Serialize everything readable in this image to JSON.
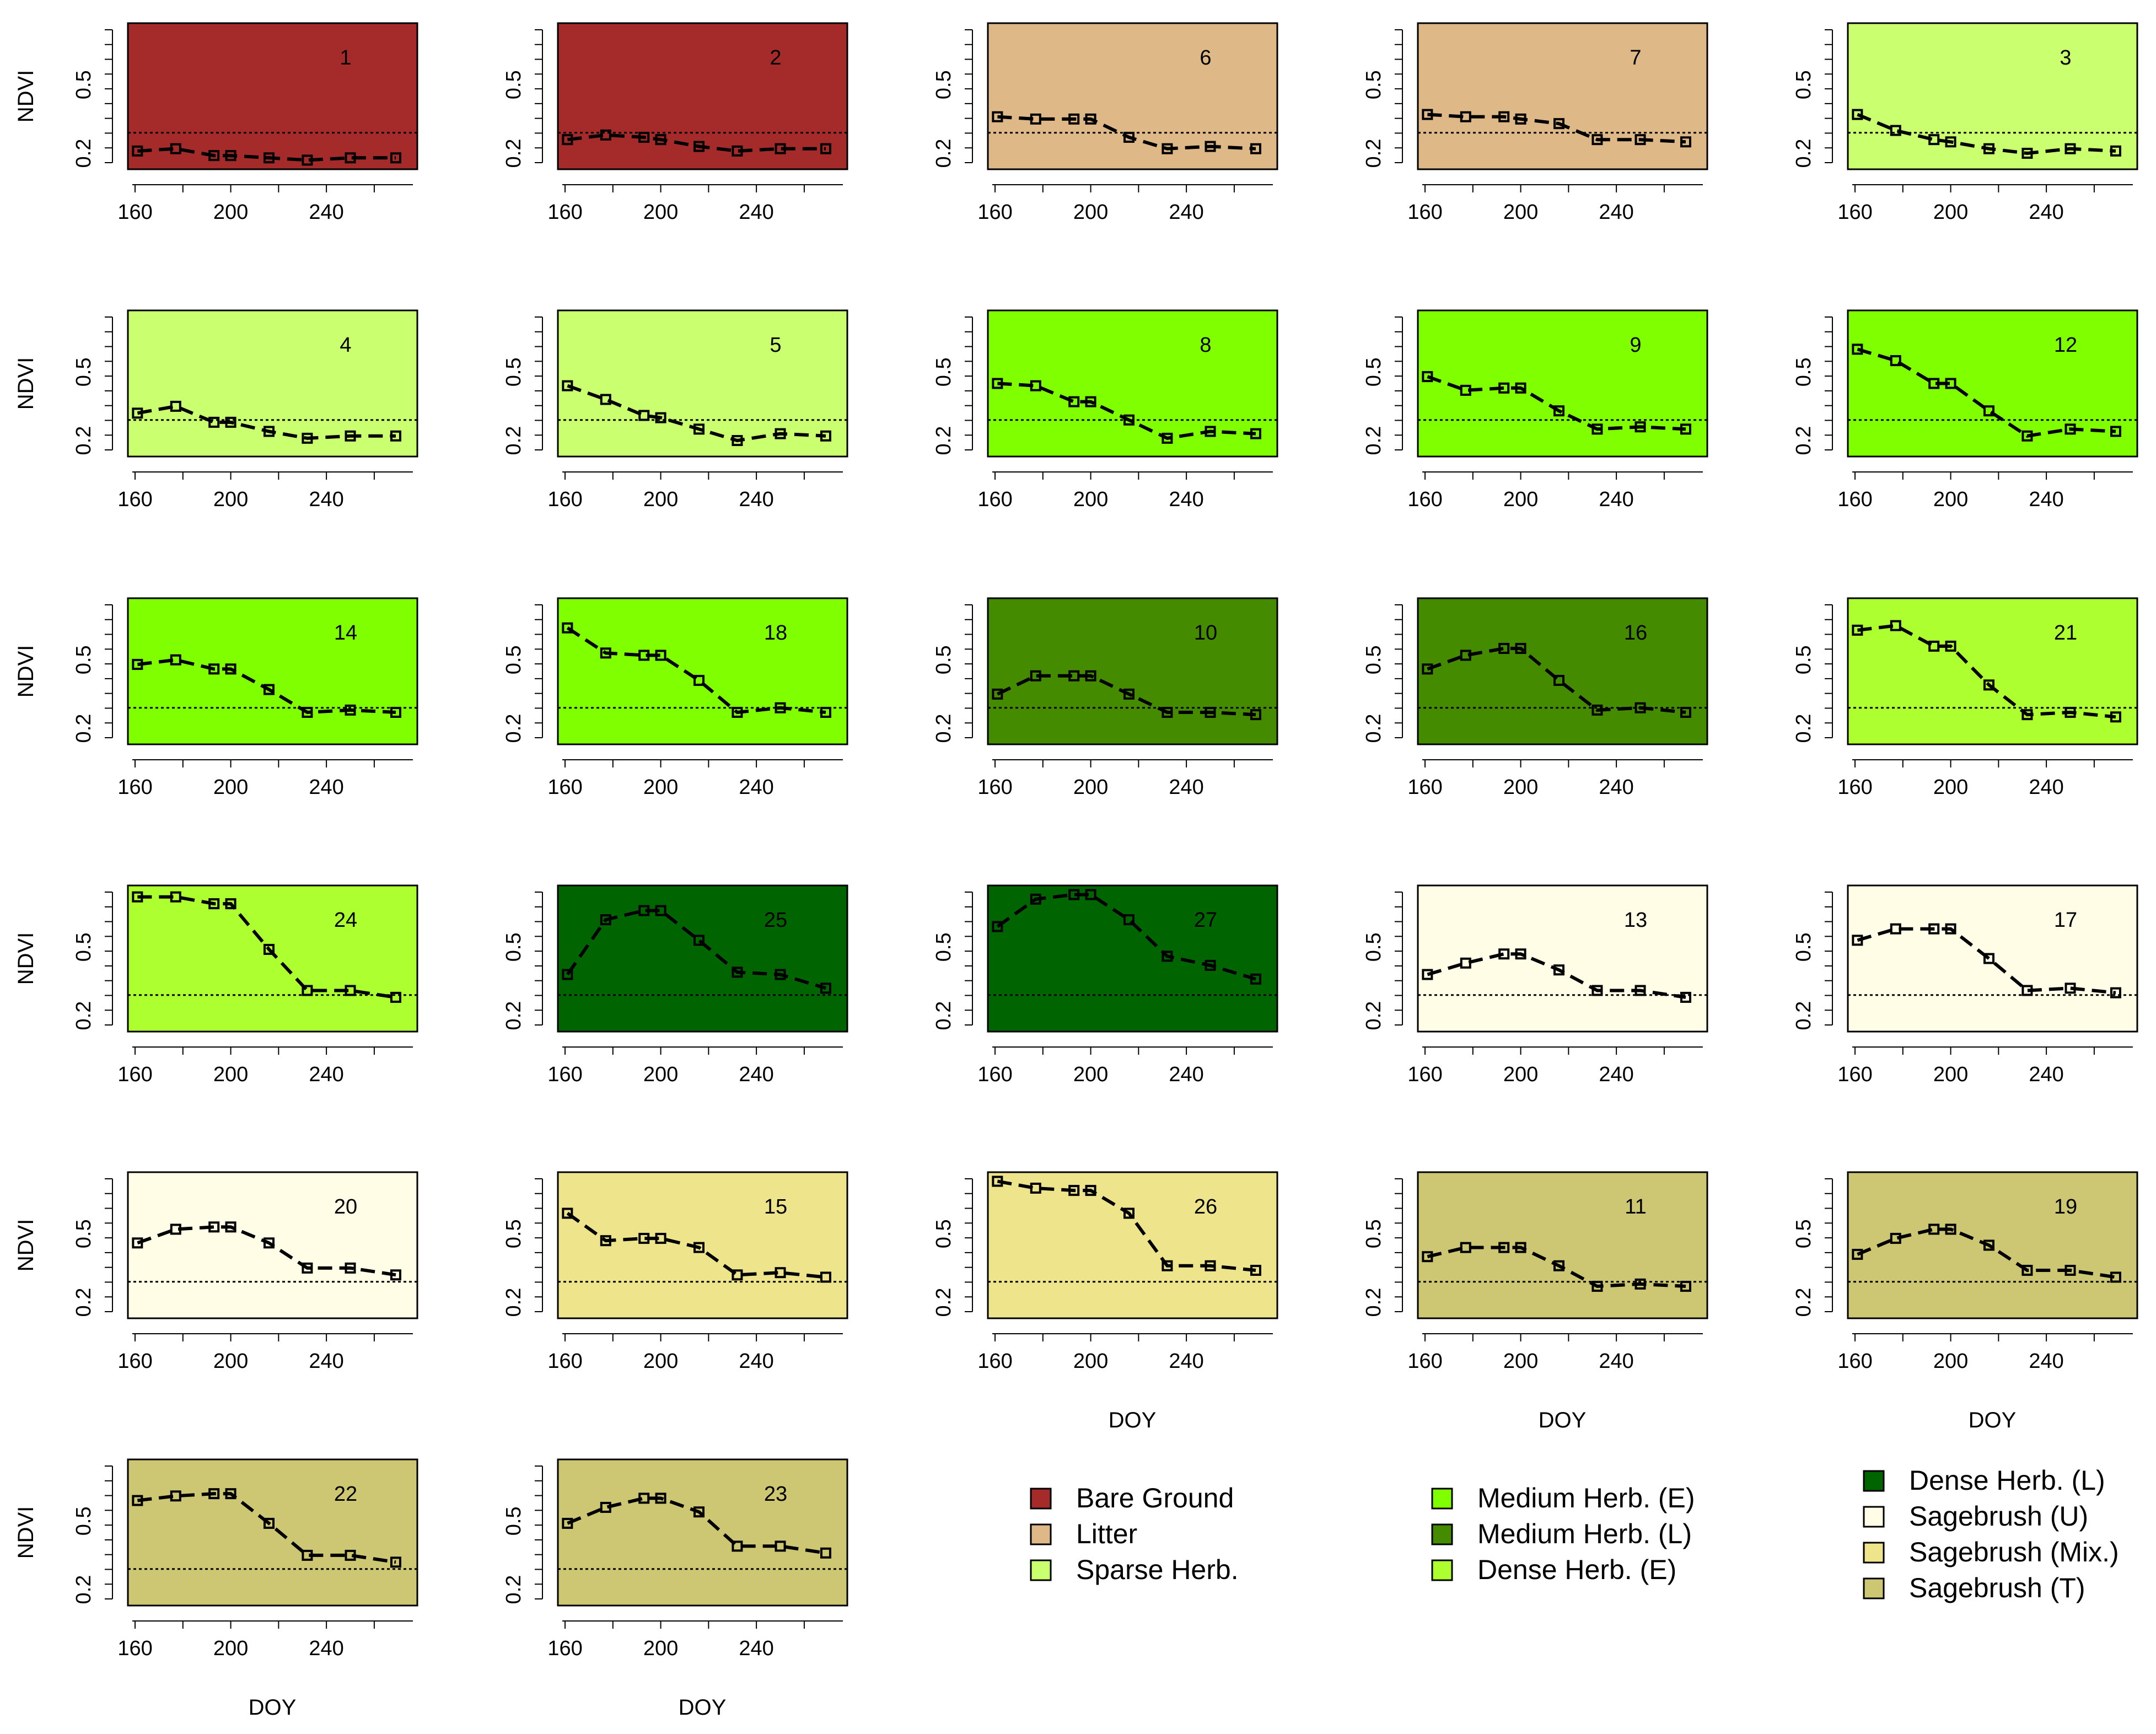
{
  "chart_data": {
    "type": "line",
    "doy": [
      161,
      177,
      193,
      200,
      216,
      232,
      250,
      269
    ],
    "xticks": [
      160,
      200,
      240
    ],
    "yticks": [
      "0.2",
      "0.5"
    ],
    "ylim": [
      0.13,
      0.77
    ],
    "xlim": [
      157,
      278
    ],
    "threshold": 0.29,
    "ylabel": "NDVI",
    "xlabel": "DOY",
    "colors": {
      "bare_ground": "#a52a2a",
      "litter": "#deb887",
      "sparse_herb": "#caff70",
      "medium_herb_e": "#7fff00",
      "medium_herb_l": "#458b00",
      "dense_herb_e": "#adff2f",
      "dense_herb_l": "#006400",
      "sagebrush_u": "#fffde6",
      "sagebrush_mix": "#eee48c",
      "sagebrush_t": "#cdc673"
    },
    "panels": [
      {
        "label": "1",
        "cls": "bare_ground",
        "values": [
          0.21,
          0.22,
          0.19,
          0.19,
          0.18,
          0.17,
          0.18,
          0.18
        ]
      },
      {
        "label": "2",
        "cls": "bare_ground",
        "values": [
          0.26,
          0.28,
          0.27,
          0.26,
          0.23,
          0.21,
          0.22,
          0.22
        ]
      },
      {
        "label": "6",
        "cls": "litter",
        "values": [
          0.36,
          0.35,
          0.35,
          0.35,
          0.27,
          0.22,
          0.23,
          0.22
        ]
      },
      {
        "label": "7",
        "cls": "litter",
        "values": [
          0.37,
          0.36,
          0.36,
          0.35,
          0.33,
          0.26,
          0.26,
          0.25
        ]
      },
      {
        "label": "3",
        "cls": "sparse_herb",
        "values": [
          0.37,
          0.3,
          0.26,
          0.25,
          0.22,
          0.2,
          0.22,
          0.21
        ]
      },
      {
        "label": "4",
        "cls": "sparse_herb",
        "values": [
          0.32,
          0.35,
          0.28,
          0.28,
          0.24,
          0.21,
          0.22,
          0.22
        ]
      },
      {
        "label": "5",
        "cls": "sparse_herb",
        "values": [
          0.44,
          0.38,
          0.31,
          0.3,
          0.25,
          0.2,
          0.23,
          0.22
        ]
      },
      {
        "label": "8",
        "cls": "medium_herb_e",
        "values": [
          0.45,
          0.44,
          0.37,
          0.37,
          0.29,
          0.21,
          0.24,
          0.23
        ]
      },
      {
        "label": "9",
        "cls": "medium_herb_e",
        "values": [
          0.48,
          0.42,
          0.43,
          0.43,
          0.33,
          0.25,
          0.26,
          0.25
        ]
      },
      {
        "label": "12",
        "cls": "medium_herb_e",
        "values": [
          0.6,
          0.55,
          0.45,
          0.45,
          0.33,
          0.22,
          0.25,
          0.24
        ]
      },
      {
        "label": "14",
        "cls": "medium_herb_e",
        "values": [
          0.48,
          0.5,
          0.46,
          0.46,
          0.37,
          0.27,
          0.28,
          0.27
        ]
      },
      {
        "label": "18",
        "cls": "medium_herb_e",
        "values": [
          0.64,
          0.53,
          0.52,
          0.52,
          0.41,
          0.27,
          0.29,
          0.27
        ]
      },
      {
        "label": "10",
        "cls": "medium_herb_l",
        "values": [
          0.35,
          0.43,
          0.43,
          0.43,
          0.35,
          0.27,
          0.27,
          0.26
        ]
      },
      {
        "label": "16",
        "cls": "medium_herb_l",
        "values": [
          0.46,
          0.52,
          0.55,
          0.55,
          0.41,
          0.28,
          0.29,
          0.27
        ]
      },
      {
        "label": "21",
        "cls": "dense_herb_e",
        "values": [
          0.63,
          0.65,
          0.56,
          0.56,
          0.39,
          0.26,
          0.27,
          0.25
        ]
      },
      {
        "label": "24",
        "cls": "dense_herb_e",
        "values": [
          0.72,
          0.72,
          0.69,
          0.69,
          0.49,
          0.31,
          0.31,
          0.28
        ]
      },
      {
        "label": "25",
        "cls": "dense_herb_l",
        "values": [
          0.38,
          0.62,
          0.66,
          0.66,
          0.53,
          0.39,
          0.38,
          0.32
        ]
      },
      {
        "label": "27",
        "cls": "dense_herb_l",
        "values": [
          0.59,
          0.71,
          0.73,
          0.73,
          0.62,
          0.46,
          0.42,
          0.36
        ]
      },
      {
        "label": "13",
        "cls": "sagebrush_u",
        "values": [
          0.38,
          0.43,
          0.47,
          0.47,
          0.4,
          0.31,
          0.31,
          0.28
        ]
      },
      {
        "label": "17",
        "cls": "sagebrush_u",
        "values": [
          0.53,
          0.58,
          0.58,
          0.58,
          0.45,
          0.31,
          0.32,
          0.3
        ]
      },
      {
        "label": "20",
        "cls": "sagebrush_u",
        "values": [
          0.46,
          0.52,
          0.53,
          0.53,
          0.46,
          0.35,
          0.35,
          0.32
        ]
      },
      {
        "label": "15",
        "cls": "sagebrush_mix",
        "values": [
          0.59,
          0.47,
          0.48,
          0.48,
          0.44,
          0.32,
          0.33,
          0.31
        ]
      },
      {
        "label": "26",
        "cls": "sagebrush_mix",
        "values": [
          0.73,
          0.7,
          0.69,
          0.69,
          0.59,
          0.36,
          0.36,
          0.34
        ]
      },
      {
        "label": "11",
        "cls": "sagebrush_t",
        "values": [
          0.4,
          0.44,
          0.44,
          0.44,
          0.36,
          0.27,
          0.28,
          0.27
        ]
      },
      {
        "label": "19",
        "cls": "sagebrush_t",
        "values": [
          0.41,
          0.48,
          0.52,
          0.52,
          0.45,
          0.34,
          0.34,
          0.31
        ]
      },
      {
        "label": "22",
        "cls": "sagebrush_t",
        "values": [
          0.59,
          0.61,
          0.62,
          0.62,
          0.49,
          0.35,
          0.35,
          0.32
        ]
      },
      {
        "label": "23",
        "cls": "sagebrush_t",
        "values": [
          0.49,
          0.56,
          0.6,
          0.6,
          0.54,
          0.39,
          0.39,
          0.36
        ]
      }
    ],
    "legend": [
      {
        "label": "Bare Ground",
        "cls": "bare_ground"
      },
      {
        "label": "Litter",
        "cls": "litter"
      },
      {
        "label": "Sparse Herb.",
        "cls": "sparse_herb"
      },
      {
        "label": "Medium Herb. (E)",
        "cls": "medium_herb_e"
      },
      {
        "label": "Medium Herb. (L)",
        "cls": "medium_herb_l"
      },
      {
        "label": "Dense Herb. (E)",
        "cls": "dense_herb_e"
      },
      {
        "label": "Dense Herb. (L)",
        "cls": "dense_herb_l"
      },
      {
        "label": "Sagebrush (U)",
        "cls": "sagebrush_u"
      },
      {
        "label": "Sagebrush (Mix.)",
        "cls": "sagebrush_mix"
      },
      {
        "label": "Sagebrush (T)",
        "cls": "sagebrush_t"
      }
    ]
  }
}
